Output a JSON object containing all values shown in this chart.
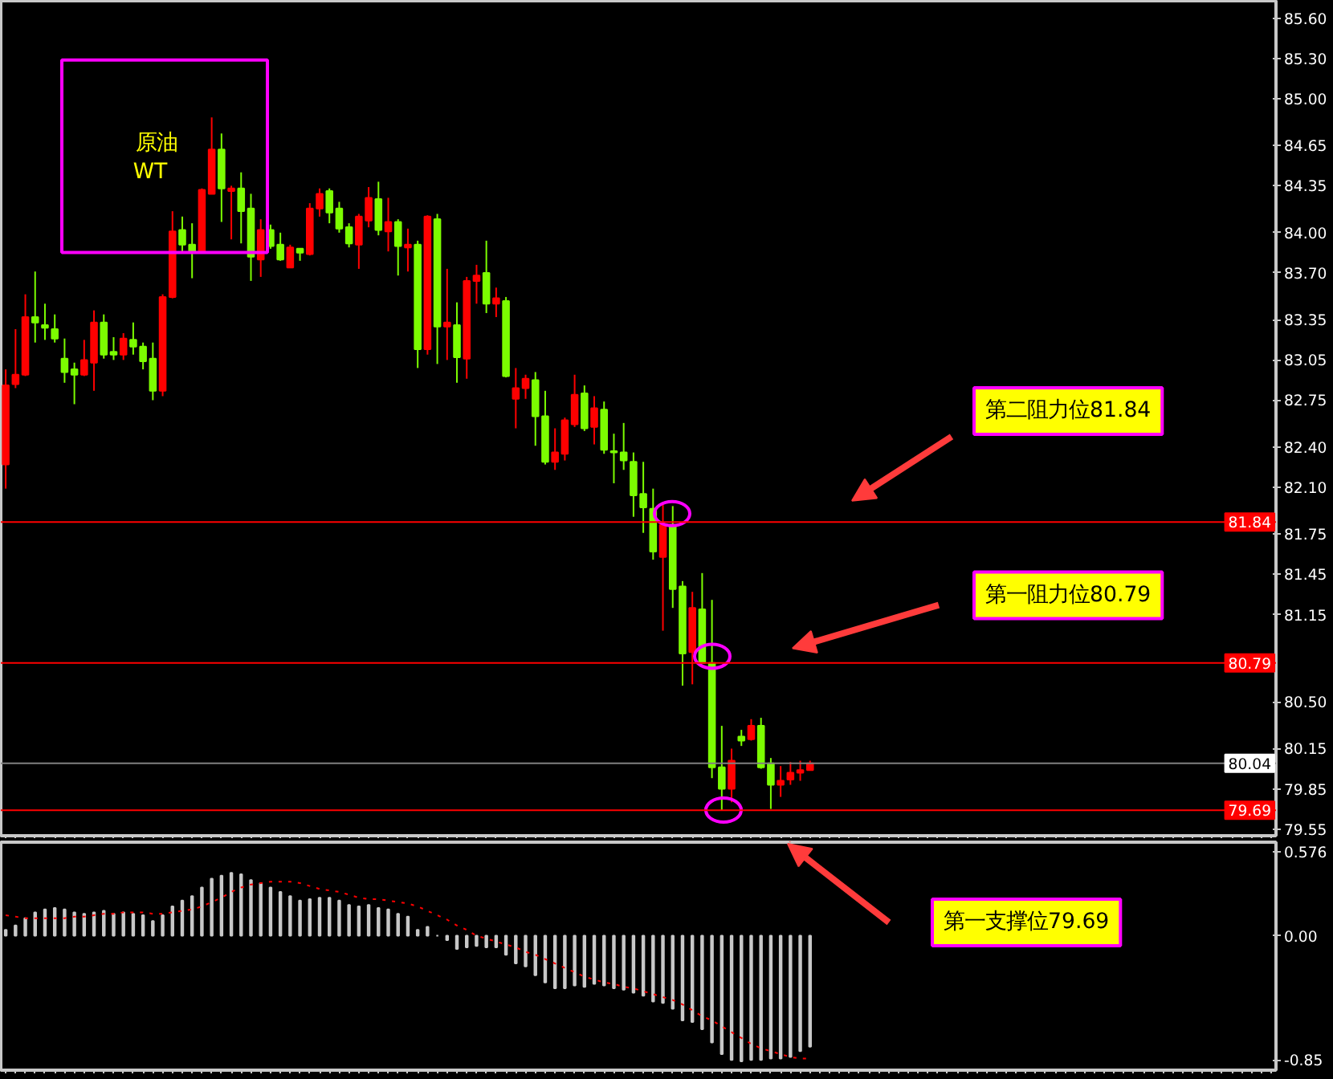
{
  "chart_data": [
    {
      "type": "candlestick",
      "categories": [
        null,
        null,
        null,
        null,
        null,
        null,
        null,
        null,
        null,
        null,
        null,
        null,
        null,
        null,
        null,
        null,
        null,
        null,
        null,
        null,
        null,
        null,
        null,
        null,
        null,
        null,
        null,
        null,
        null,
        null,
        null,
        null,
        null,
        null,
        null,
        null,
        null,
        null,
        null,
        null,
        null,
        null,
        null,
        null,
        null,
        null,
        null,
        null,
        null,
        null,
        null,
        null,
        null,
        null,
        null,
        null,
        null,
        null,
        null,
        null,
        null,
        null,
        null,
        null,
        null,
        null,
        null,
        null,
        null,
        null,
        null,
        null,
        null,
        null,
        null,
        null,
        null,
        null,
        null,
        null,
        null,
        null,
        null,
        null,
        null,
        null,
        null,
        null,
        null,
        null,
        null,
        null,
        null,
        null,
        null,
        null,
        null,
        null,
        null,
        null,
        null,
        null,
        null,
        null,
        null,
        null,
        null,
        null,
        null,
        null,
        null,
        null,
        null,
        null,
        null,
        null,
        null,
        null,
        null,
        null,
        null,
        null,
        null,
        null,
        null,
        null,
        null,
        null,
        null,
        null
      ],
      "ohlc": [
        [
          82.27,
          82.98,
          82.09,
          82.86
        ],
        [
          82.87,
          83.28,
          82.84,
          82.94
        ],
        [
          82.94,
          83.54,
          82.93,
          83.37
        ],
        [
          83.37,
          83.71,
          83.18,
          83.33
        ],
        [
          83.31,
          83.47,
          83.2,
          83.29
        ],
        [
          83.28,
          83.39,
          83.18,
          83.21
        ],
        [
          83.06,
          83.21,
          82.88,
          82.96
        ],
        [
          82.98,
          83.03,
          82.72,
          82.94
        ],
        [
          82.94,
          83.2,
          82.93,
          83.05
        ],
        [
          83.03,
          83.42,
          82.82,
          83.33
        ],
        [
          83.33,
          83.39,
          83.06,
          83.09
        ],
        [
          83.11,
          83.22,
          83.05,
          83.09
        ],
        [
          83.09,
          83.25,
          83.05,
          83.21
        ],
        [
          83.2,
          83.33,
          83.09,
          83.15
        ],
        [
          83.15,
          83.18,
          82.98,
          83.04
        ],
        [
          83.06,
          83.18,
          82.75,
          82.82
        ],
        [
          82.82,
          83.54,
          82.78,
          83.52
        ],
        [
          83.52,
          84.16,
          83.51,
          84.01
        ],
        [
          84.02,
          84.12,
          83.85,
          83.91
        ],
        [
          83.91,
          84.07,
          83.66,
          83.85
        ],
        [
          83.85,
          84.33,
          83.85,
          84.32
        ],
        [
          84.29,
          84.86,
          84.29,
          84.62
        ],
        [
          84.62,
          84.74,
          84.08,
          84.33
        ],
        [
          84.31,
          84.35,
          83.95,
          84.33
        ],
        [
          84.33,
          84.45,
          83.92,
          84.16
        ],
        [
          84.18,
          84.29,
          83.64,
          83.82
        ],
        [
          83.8,
          84.1,
          83.67,
          84.02
        ],
        [
          84.02,
          84.06,
          83.88,
          83.9
        ],
        [
          83.91,
          84.0,
          83.79,
          83.8
        ],
        [
          83.74,
          83.91,
          83.74,
          83.89
        ],
        [
          83.88,
          83.88,
          83.79,
          83.85
        ],
        [
          83.84,
          84.22,
          83.83,
          84.18
        ],
        [
          84.18,
          84.33,
          84.12,
          84.29
        ],
        [
          84.31,
          84.33,
          84.07,
          84.15
        ],
        [
          84.18,
          84.23,
          84.0,
          84.03
        ],
        [
          84.04,
          84.07,
          83.89,
          83.92
        ],
        [
          83.91,
          84.14,
          83.73,
          84.12
        ],
        [
          84.09,
          84.34,
          84.04,
          84.26
        ],
        [
          84.25,
          84.38,
          83.98,
          84.02
        ],
        [
          84.01,
          84.26,
          83.86,
          84.08
        ],
        [
          84.08,
          84.1,
          83.68,
          83.9
        ],
        [
          83.89,
          84.03,
          83.71,
          83.91
        ],
        [
          83.91,
          83.94,
          82.99,
          83.13
        ],
        [
          83.13,
          84.13,
          83.09,
          84.12
        ],
        [
          84.1,
          84.14,
          83.02,
          83.3
        ],
        [
          83.3,
          83.73,
          83.05,
          83.33
        ],
        [
          83.31,
          83.48,
          82.88,
          83.07
        ],
        [
          83.06,
          83.67,
          82.91,
          83.64
        ],
        [
          83.64,
          83.76,
          83.47,
          83.68
        ],
        [
          83.7,
          83.94,
          83.4,
          83.47
        ],
        [
          83.47,
          83.59,
          83.37,
          83.51
        ],
        [
          83.49,
          83.52,
          82.92,
          82.93
        ],
        [
          82.76,
          82.99,
          82.54,
          82.84
        ],
        [
          82.84,
          82.94,
          82.76,
          82.91
        ],
        [
          82.9,
          82.96,
          82.41,
          82.63
        ],
        [
          82.63,
          82.82,
          82.27,
          82.29
        ],
        [
          82.29,
          82.54,
          82.23,
          82.36
        ],
        [
          82.35,
          82.62,
          82.3,
          82.6
        ],
        [
          82.57,
          82.94,
          82.55,
          82.79
        ],
        [
          82.8,
          82.86,
          82.52,
          82.54
        ],
        [
          82.55,
          82.78,
          82.42,
          82.69
        ],
        [
          82.68,
          82.74,
          82.35,
          82.38
        ],
        [
          82.37,
          82.5,
          82.13,
          82.36
        ],
        [
          82.36,
          82.58,
          82.23,
          82.3
        ],
        [
          82.29,
          82.36,
          81.88,
          82.04
        ],
        [
          82.05,
          82.29,
          81.76,
          81.95
        ],
        [
          81.94,
          82.09,
          81.56,
          81.62
        ],
        [
          81.58,
          81.99,
          81.03,
          81.82
        ],
        [
          81.82,
          81.96,
          81.2,
          81.34
        ],
        [
          81.36,
          81.4,
          80.62,
          80.86
        ],
        [
          80.87,
          81.32,
          80.63,
          81.2
        ],
        [
          81.19,
          81.46,
          80.79,
          80.79
        ],
        [
          80.79,
          81.26,
          79.93,
          80.01
        ],
        [
          80.01,
          80.32,
          79.69,
          79.85
        ],
        [
          79.85,
          80.15,
          79.75,
          80.06
        ],
        [
          80.24,
          80.29,
          80.17,
          80.21
        ],
        [
          80.22,
          80.37,
          80.21,
          80.32
        ],
        [
          80.32,
          80.38,
          80.0,
          80.01
        ],
        [
          80.04,
          80.08,
          79.7,
          79.88
        ],
        [
          79.88,
          80.02,
          79.79,
          79.91
        ],
        [
          79.92,
          80.05,
          79.88,
          79.97
        ],
        [
          79.97,
          80.06,
          79.91,
          79.99
        ],
        [
          79.99,
          80.06,
          79.99,
          80.04
        ],
        null,
        null,
        null,
        null,
        null,
        null,
        null,
        null,
        null,
        null,
        null,
        null,
        null,
        null,
        null,
        null,
        null,
        null,
        null,
        null,
        null,
        null,
        null,
        null,
        null,
        null,
        null,
        null,
        null,
        null,
        null,
        null,
        null,
        null,
        null,
        null,
        null,
        null,
        null,
        null,
        null,
        null,
        null,
        null,
        null,
        null,
        null
      ],
      "colors": [
        "#ff0000",
        "#ff0000",
        "#ff0000",
        "#7cfc00",
        "#7cfc00",
        "#7cfc00",
        "#7cfc00",
        "#7cfc00",
        "#ff0000",
        "#ff0000",
        "#7cfc00",
        "#7cfc00",
        "#ff0000",
        "#7cfc00",
        "#7cfc00",
        "#7cfc00",
        "#ff0000",
        "#ff0000",
        "#7cfc00",
        "#7cfc00",
        "#ff0000",
        "#ff0000",
        "#7cfc00",
        "#ff0000",
        "#7cfc00",
        "#7cfc00",
        "#ff0000",
        "#7cfc00",
        "#7cfc00",
        "#ff0000",
        "#7cfc00",
        "#ff0000",
        "#ff0000",
        "#7cfc00",
        "#7cfc00",
        "#7cfc00",
        "#ff0000",
        "#ff0000",
        "#7cfc00",
        "#ff0000",
        "#7cfc00",
        "#ff0000",
        "#7cfc00",
        "#ff0000",
        "#7cfc00",
        "#ff0000",
        "#7cfc00",
        "#ff0000",
        "#ff0000",
        "#7cfc00",
        "#ff0000",
        "#7cfc00",
        "#ff0000",
        "#ff0000",
        "#7cfc00",
        "#7cfc00",
        "#ff0000",
        "#ff0000",
        "#ff0000",
        "#7cfc00",
        "#ff0000",
        "#7cfc00",
        "#7cfc00",
        "#7cfc00",
        "#7cfc00",
        "#7cfc00",
        "#7cfc00",
        "#ff0000",
        "#7cfc00",
        "#7cfc00",
        "#ff0000",
        "#7cfc00",
        "#7cfc00",
        "#7cfc00",
        "#ff0000",
        "#7cfc00",
        "#ff0000",
        "#7cfc00",
        "#7cfc00",
        "#ff0000",
        "#ff0000",
        "#ff0000",
        "#ff0000",
        null,
        null,
        null,
        null,
        null,
        null,
        null,
        null,
        null,
        null,
        null,
        null,
        null,
        null,
        null,
        null,
        null,
        null,
        null,
        null,
        null,
        null,
        null,
        null,
        null,
        null,
        null,
        null,
        null,
        null,
        null,
        null,
        null,
        null,
        null,
        null,
        null,
        null,
        null,
        null,
        null,
        null,
        null,
        null,
        null,
        null,
        null
      ],
      "ylim": [
        79.5,
        85.73
      ],
      "yticks": [
        {
          "value": 85.6,
          "label": "85.60"
        },
        {
          "value": 85.3,
          "label": "85.30"
        },
        {
          "value": 85.0,
          "label": "85.00"
        },
        {
          "value": 84.65,
          "label": "84.65"
        },
        {
          "value": 84.35,
          "label": "84.35"
        },
        {
          "value": 84.0,
          "label": "84.00"
        },
        {
          "value": 83.7,
          "label": "83.70"
        },
        {
          "value": 83.35,
          "label": "83.35"
        },
        {
          "value": 83.05,
          "label": "83.05"
        },
        {
          "value": 82.75,
          "label": "82.75"
        },
        {
          "value": 82.4,
          "label": "82.40"
        },
        {
          "value": 82.1,
          "label": "82.10"
        },
        {
          "value": 81.75,
          "label": "81.75"
        },
        {
          "value": 81.45,
          "label": "81.45"
        },
        {
          "value": 81.15,
          "label": "81.15"
        },
        {
          "value": 80.5,
          "label": "80.50"
        },
        {
          "value": 80.15,
          "label": "80.15"
        },
        {
          "value": 79.85,
          "label": "79.85"
        },
        {
          "value": 79.55,
          "label": "79.55"
        }
      ],
      "ref_lines": [
        {
          "axis": "y",
          "value": 81.84,
          "label": "81.84",
          "color": "#ff0000"
        },
        {
          "axis": "y",
          "value": 80.79,
          "label": "80.79",
          "color": "#ff0000"
        },
        {
          "axis": "y",
          "value": 80.04,
          "label": "80.04",
          "color": "#808080"
        },
        {
          "axis": "y",
          "value": 79.69,
          "label": "79.69",
          "color": "#ff0000"
        }
      ],
      "annotations": [
        "原油",
        "WT",
        "第二阻力位81.84",
        "第一阻力位80.79"
      ],
      "tick_labels": "y"
    },
    {
      "type": "bar",
      "categories": [
        null,
        null,
        null,
        null,
        null,
        null,
        null,
        null,
        null,
        null,
        null,
        null,
        null,
        null,
        null,
        null,
        null,
        null,
        null,
        null,
        null,
        null,
        null,
        null,
        null,
        null,
        null,
        null,
        null,
        null,
        null,
        null,
        null,
        null,
        null,
        null,
        null,
        null,
        null,
        null,
        null,
        null,
        null,
        null,
        null,
        null,
        null,
        null,
        null,
        null,
        null,
        null,
        null,
        null,
        null,
        null,
        null,
        null,
        null,
        null,
        null,
        null,
        null,
        null,
        null,
        null,
        null,
        null,
        null,
        null,
        null,
        null,
        null,
        null,
        null,
        null,
        null,
        null,
        null,
        null,
        null,
        null,
        null,
        null,
        null,
        null,
        null,
        null,
        null,
        null,
        null,
        null,
        null,
        null,
        null,
        null,
        null,
        null,
        null,
        null,
        null,
        null,
        null,
        null,
        null,
        null,
        null,
        null,
        null,
        null,
        null,
        null,
        null,
        null,
        null,
        null,
        null,
        null,
        null,
        null,
        null,
        null,
        null,
        null,
        null,
        null,
        null,
        null,
        null,
        null
      ],
      "series": [
        {
          "type": "bar",
          "color": "#c8c8c8",
          "values": [
            0.04,
            0.07,
            0.12,
            0.16,
            0.18,
            0.19,
            0.18,
            0.16,
            0.15,
            0.16,
            0.17,
            0.15,
            0.16,
            0.15,
            0.14,
            0.1,
            0.14,
            0.2,
            0.24,
            0.27,
            0.33,
            0.39,
            0.41,
            0.43,
            0.42,
            0.38,
            0.36,
            0.33,
            0.3,
            0.27,
            0.24,
            0.25,
            0.26,
            0.26,
            0.24,
            0.21,
            0.2,
            0.21,
            0.19,
            0.18,
            0.15,
            0.13,
            0.04,
            0.06,
            0.0,
            -0.03,
            -0.09,
            -0.08,
            -0.07,
            -0.08,
            -0.08,
            -0.13,
            -0.19,
            -0.21,
            -0.27,
            -0.32,
            -0.36,
            -0.36,
            -0.34,
            -0.35,
            -0.33,
            -0.34,
            -0.36,
            -0.37,
            -0.39,
            -0.41,
            -0.45,
            -0.46,
            -0.5,
            -0.58,
            -0.59,
            -0.64,
            -0.73,
            -0.81,
            -0.85,
            -0.86,
            -0.85,
            -0.85,
            -0.84,
            -0.84,
            -0.83,
            -0.79,
            -0.76,
            null,
            null,
            null,
            null,
            null,
            null,
            null,
            null,
            null,
            null,
            null,
            null,
            null,
            null,
            null,
            null,
            null,
            null,
            null,
            null,
            null,
            null,
            null,
            null,
            null,
            null,
            null,
            null,
            null,
            null,
            null,
            null,
            null,
            null,
            null,
            null,
            null,
            null,
            null,
            null,
            null,
            null,
            null,
            null,
            null,
            null,
            null
          ]
        },
        {
          "type": "line",
          "color": "#ff0000",
          "line_style": "dotted",
          "values": [
            0.14,
            0.13,
            0.12,
            0.12,
            0.12,
            0.12,
            0.12,
            0.13,
            0.13,
            0.14,
            0.15,
            0.15,
            0.16,
            0.16,
            0.16,
            0.15,
            0.15,
            0.16,
            0.17,
            0.18,
            0.2,
            0.23,
            0.26,
            0.3,
            0.33,
            0.35,
            0.36,
            0.37,
            0.37,
            0.37,
            0.36,
            0.34,
            0.32,
            0.31,
            0.3,
            0.28,
            0.26,
            0.25,
            0.25,
            0.24,
            0.23,
            0.22,
            0.2,
            0.17,
            0.14,
            0.11,
            0.07,
            0.04,
            0.0,
            -0.02,
            -0.04,
            -0.06,
            -0.08,
            -0.11,
            -0.13,
            -0.16,
            -0.19,
            -0.22,
            -0.25,
            -0.28,
            -0.3,
            -0.32,
            -0.33,
            -0.35,
            -0.36,
            -0.38,
            -0.4,
            -0.42,
            -0.44,
            -0.47,
            -0.51,
            -0.55,
            -0.58,
            -0.62,
            -0.66,
            -0.7,
            -0.74,
            -0.77,
            -0.79,
            -0.81,
            -0.83,
            -0.84,
            -0.84,
            null,
            null,
            null,
            null,
            null,
            null,
            null,
            null,
            null,
            null,
            null,
            null,
            null,
            null,
            null,
            null,
            null,
            null,
            null,
            null,
            null,
            null,
            null,
            null,
            null,
            null,
            null,
            null,
            null,
            null,
            null,
            null,
            null,
            null,
            null,
            null,
            null,
            null,
            null,
            null,
            null,
            null,
            null,
            null,
            null,
            null,
            null
          ]
        }
      ],
      "ylim": [
        -0.92,
        0.64
      ],
      "yticks": [
        {
          "value": 0.576,
          "label": "0.576"
        },
        {
          "value": 0,
          "label": "0.00"
        },
        {
          "value": -0.85,
          "label": "-0.85"
        }
      ],
      "annotations": [
        "第一支撑位79.69"
      ],
      "tick_labels": "y"
    }
  ]
}
